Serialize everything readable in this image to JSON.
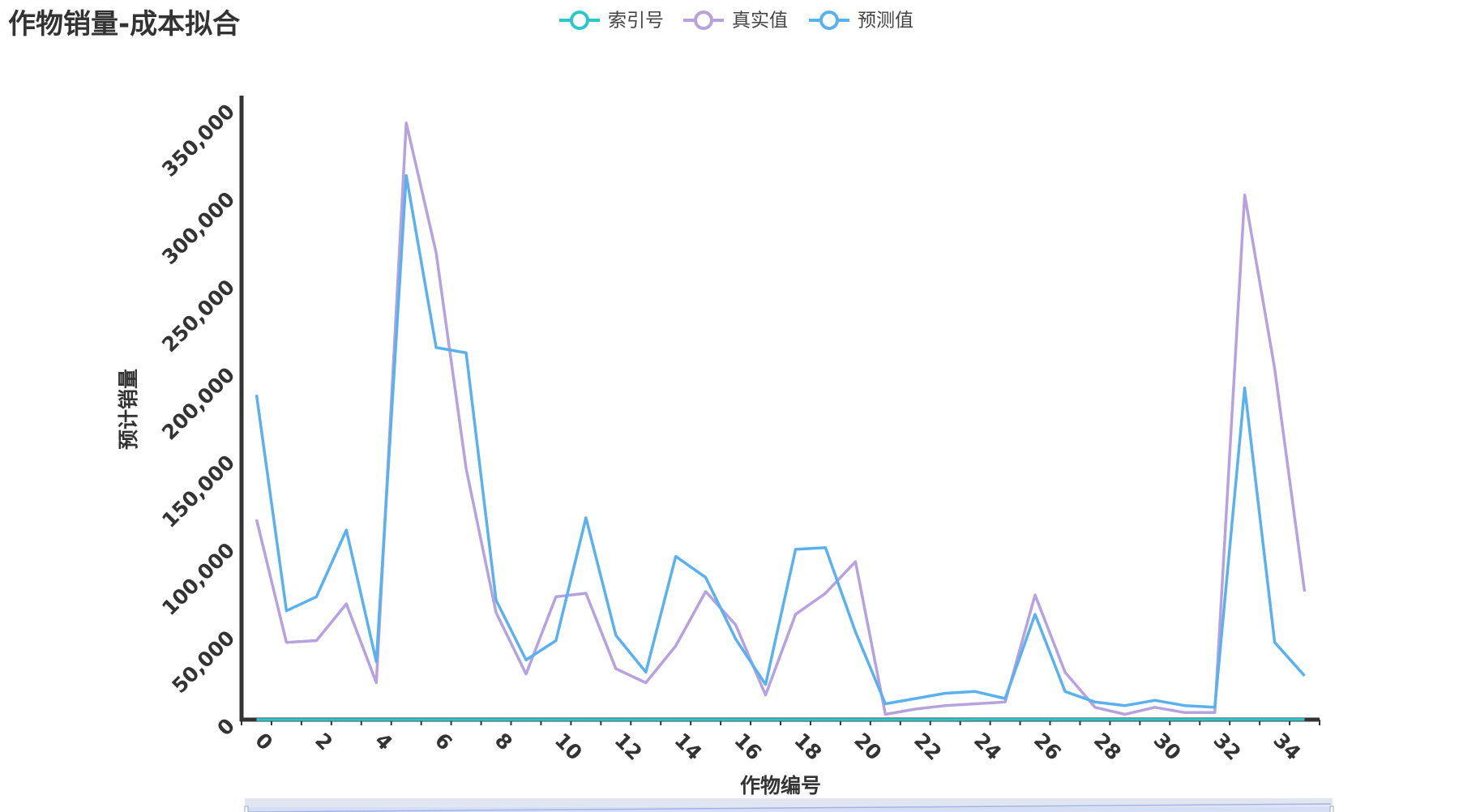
{
  "chart_data": {
    "type": "line",
    "title": "作物销量-成本拟合",
    "xlabel": "作物编号",
    "ylabel": "预计销量",
    "xlim": [
      0,
      35
    ],
    "ylim": [
      0,
      350000
    ],
    "x_ticks": [
      "0",
      "2",
      "4",
      "6",
      "8",
      "10",
      "12",
      "14",
      "16",
      "18",
      "20",
      "22",
      "24",
      "26",
      "28",
      "30",
      "32",
      "34"
    ],
    "y_ticks": [
      "0",
      "50,000",
      "100,000",
      "150,000",
      "200,000",
      "250,000",
      "300,000",
      "350,000"
    ],
    "legend_position": "top-center",
    "grid": false,
    "series": [
      {
        "name": "索引号",
        "color": "#2ec7c9",
        "values": [
          0,
          1,
          2,
          3,
          4,
          5,
          6,
          7,
          8,
          9,
          10,
          11,
          12,
          13,
          14,
          15,
          16,
          17,
          18,
          19,
          20,
          21,
          22,
          23,
          24,
          25,
          26,
          27,
          28,
          29,
          30,
          31,
          32,
          33,
          34,
          35
        ]
      },
      {
        "name": "真实值",
        "color": "#b6a2de",
        "values": [
          114000,
          44000,
          45000,
          66000,
          21000,
          340000,
          266000,
          143000,
          61000,
          26000,
          70000,
          72000,
          29000,
          21000,
          42000,
          73000,
          54000,
          14000,
          60000,
          72000,
          90000,
          3000,
          6000,
          8000,
          9000,
          10000,
          71000,
          27000,
          7000,
          3000,
          7000,
          4000,
          4000,
          299000,
          200000,
          73000
        ]
      },
      {
        "name": "预测值",
        "color": "#5ab1ef",
        "values": [
          185000,
          62000,
          70000,
          108000,
          33000,
          310000,
          212000,
          209000,
          68000,
          34000,
          45000,
          115000,
          48000,
          27000,
          93000,
          81000,
          46000,
          20000,
          97000,
          98000,
          50000,
          9000,
          12000,
          15000,
          16000,
          12000,
          60000,
          16000,
          10000,
          8000,
          11000,
          8000,
          7000,
          189000,
          44000,
          25000
        ]
      }
    ]
  }
}
